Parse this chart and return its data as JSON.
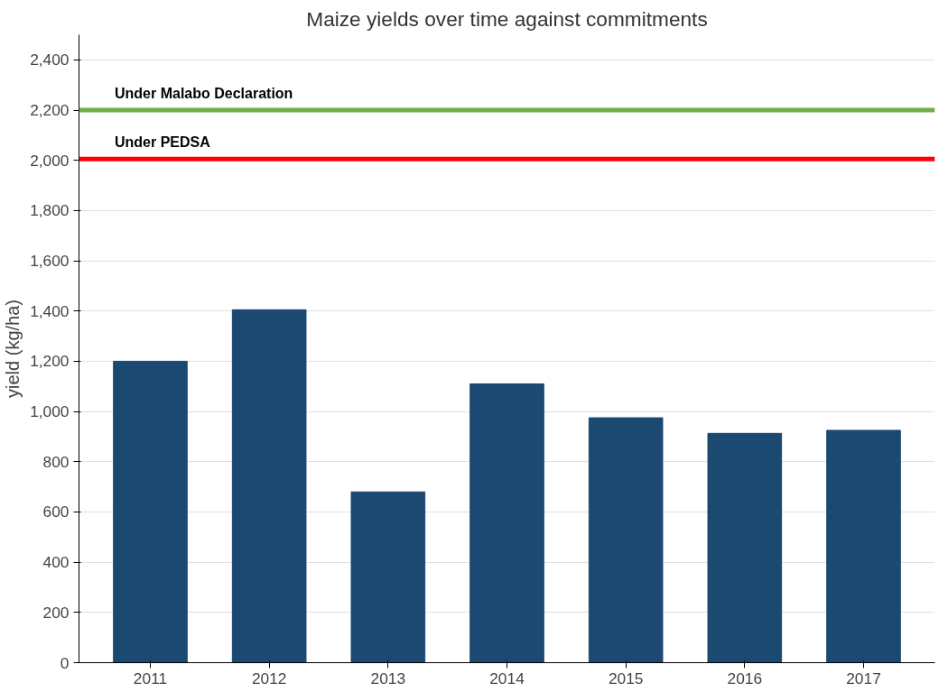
{
  "chart_data": {
    "type": "bar",
    "title": "Maize yields over time against commitments",
    "ylabel": "yield (kg/ha)",
    "categories": [
      "2011",
      "2012",
      "2013",
      "2014",
      "2015",
      "2016",
      "2017"
    ],
    "values": [
      1200,
      1405,
      680,
      1110,
      975,
      913,
      925
    ],
    "color": "#1c4971",
    "ylim": [
      0,
      2500
    ],
    "yticks": [
      {
        "value": 0,
        "label": "0"
      },
      {
        "value": 200,
        "label": "200"
      },
      {
        "value": 400,
        "label": "400"
      },
      {
        "value": 600,
        "label": "600"
      },
      {
        "value": 800,
        "label": "800"
      },
      {
        "value": 1000,
        "label": "1,000"
      },
      {
        "value": 1200,
        "label": "1,200"
      },
      {
        "value": 1400,
        "label": "1,400"
      },
      {
        "value": 1600,
        "label": "1,600"
      },
      {
        "value": 1800,
        "label": "1,800"
      },
      {
        "value": 2000,
        "label": "2,000"
      },
      {
        "value": 2200,
        "label": "2,200"
      },
      {
        "value": 2400,
        "label": "2,400"
      }
    ],
    "grid": "y",
    "ref_lines": [
      {
        "axis": "y",
        "value": 2200,
        "label": "Under Malabo Declaration",
        "color": "#70ad47"
      },
      {
        "axis": "y",
        "value": 2005,
        "label": "Under PEDSA",
        "color": "#ff0000"
      }
    ]
  }
}
